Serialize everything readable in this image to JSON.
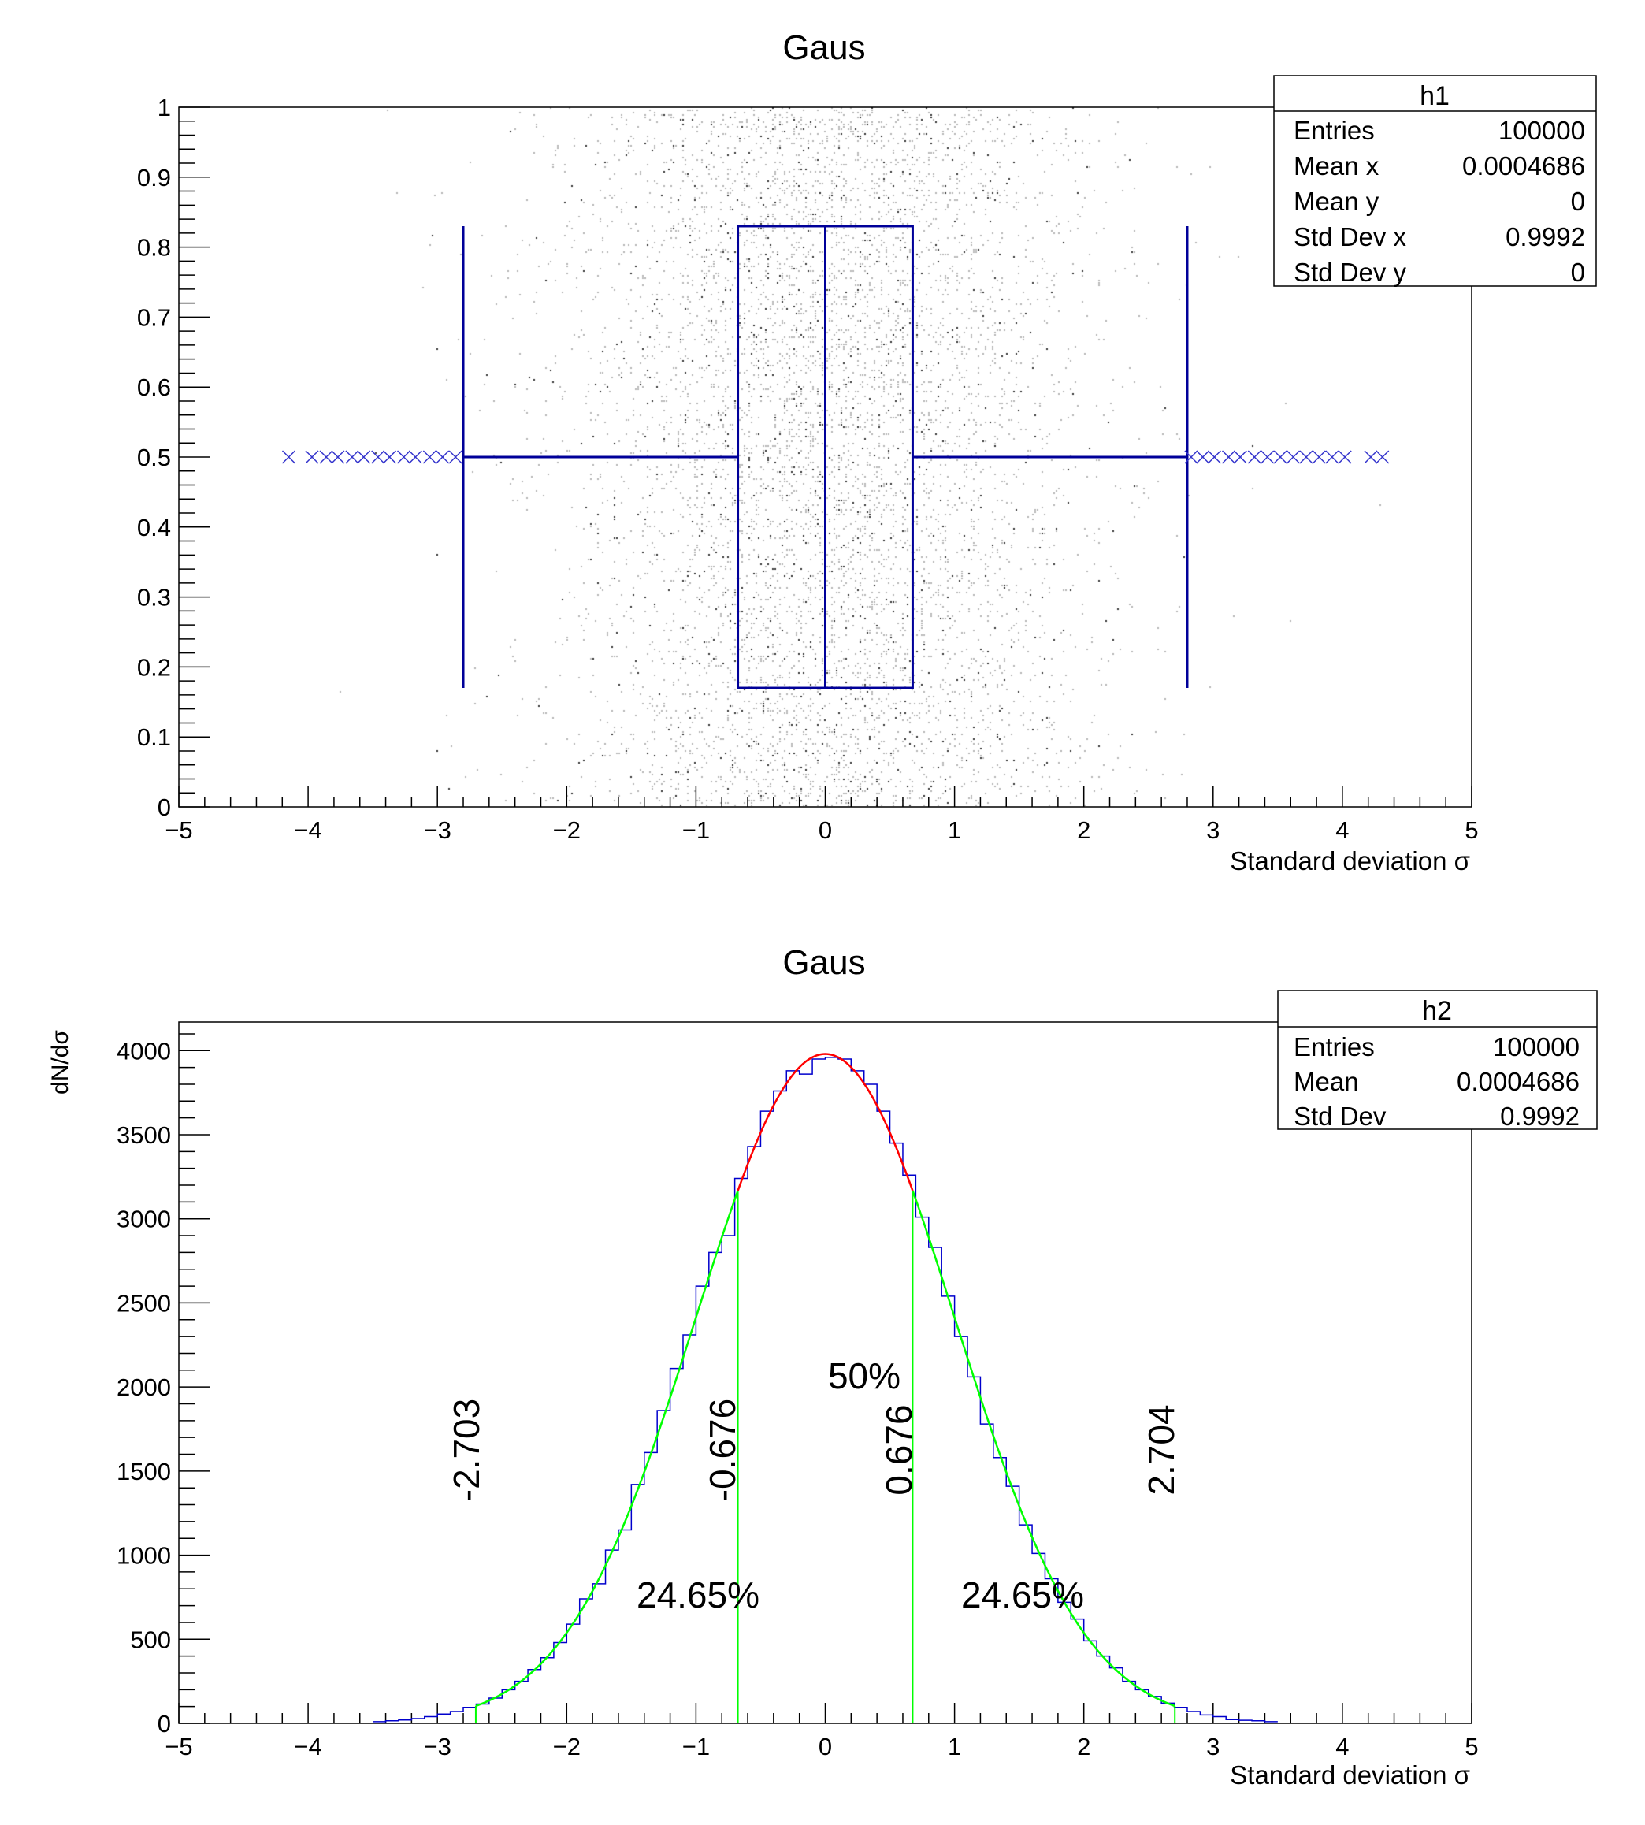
{
  "chart_data": [
    {
      "type": "box",
      "title": "Gaus",
      "xlabel": "Standard deviation σ",
      "ylabel": "",
      "xlim": [
        -5,
        5
      ],
      "ylim": [
        0,
        1
      ],
      "xticks": [
        "−5",
        "−4",
        "−3",
        "−2",
        "−1",
        "0",
        "1",
        "2",
        "3",
        "4",
        "5"
      ],
      "yticks": [
        "0",
        "0.1",
        "0.2",
        "0.3",
        "0.4",
        "0.5",
        "0.6",
        "0.7",
        "0.8",
        "0.9",
        "1"
      ],
      "box": {
        "q1": -0.676,
        "median": 0,
        "q3": 0.676,
        "whisker_low": -2.8,
        "whisker_high": 2.8,
        "y_center": 0.5,
        "y_low": 0.17,
        "y_high": 0.83
      },
      "outliers": [
        -4.15,
        -3.97,
        -3.86,
        -3.77,
        -3.66,
        -3.57,
        -3.46,
        -3.37,
        -3.26,
        -3.17,
        -3.06,
        -2.96,
        -2.86,
        2.83,
        2.92,
        3.01,
        3.12,
        3.21,
        3.32,
        3.42,
        3.52,
        3.62,
        3.72,
        3.82,
        3.92,
        4.02,
        4.22,
        4.31
      ],
      "scatter": {
        "distribution": "gaussian x, uniform y",
        "entries": 100000
      },
      "colors": {
        "box": "#000099",
        "scatter": "#b4b4b4"
      },
      "stats": {
        "title": "h1",
        "rows": [
          {
            "label": "Entries",
            "value": "100000"
          },
          {
            "label": "Mean x",
            "value": "0.0004686"
          },
          {
            "label": "Mean y",
            "value": "0"
          },
          {
            "label": "Std Dev x",
            "value": "0.9992"
          },
          {
            "label": "Std Dev y",
            "value": "0"
          }
        ]
      }
    },
    {
      "type": "histogram",
      "title": "Gaus",
      "xlabel": "Standard deviation σ",
      "ylabel": "dN/dσ",
      "xlim": [
        -5,
        5
      ],
      "ylim": [
        0,
        4170
      ],
      "xticks": [
        "−5",
        "−4",
        "−3",
        "−2",
        "−1",
        "0",
        "1",
        "2",
        "3",
        "4",
        "5"
      ],
      "yticks": [
        "0",
        "500",
        "1000",
        "1500",
        "2000",
        "2500",
        "3000",
        "3500",
        "4000"
      ],
      "bin_start": -3.5,
      "bin_width": 0.1,
      "values": [
        10,
        15,
        20,
        28,
        40,
        55,
        70,
        95,
        115,
        150,
        200,
        250,
        320,
        390,
        480,
        590,
        740,
        830,
        1030,
        1150,
        1420,
        1610,
        1860,
        2110,
        2310,
        2600,
        2800,
        2900,
        3240,
        3430,
        3640,
        3760,
        3880,
        3860,
        3950,
        3960,
        3950,
        3880,
        3800,
        3640,
        3450,
        3260,
        3010,
        2830,
        2540,
        2300,
        2060,
        1780,
        1580,
        1410,
        1180,
        1010,
        860,
        720,
        620,
        490,
        400,
        330,
        250,
        200,
        160,
        120,
        95,
        70,
        50,
        40,
        22,
        18,
        15,
        10
      ],
      "fit": {
        "constant": 3980,
        "mean": 0,
        "sigma": 1
      },
      "quantile_lines": [
        -2.703,
        -0.676,
        0.676,
        2.704
      ],
      "annotations": {
        "q_low": "-2.703",
        "q1": "-0.676",
        "q3": "0.676",
        "q_high": "2.704",
        "center_pct": "50%",
        "left_pct": "24.65%",
        "right_pct": "24.65%"
      },
      "colors": {
        "hist": "#0000cc",
        "fit_center": "#ff0000",
        "fit_tails": "#00ff00"
      },
      "stats": {
        "title": "h2",
        "rows": [
          {
            "label": "Entries",
            "value": "100000"
          },
          {
            "label": "Mean",
            "value": "0.0004686"
          },
          {
            "label": "Std Dev",
            "value": "0.9992"
          }
        ]
      }
    }
  ]
}
